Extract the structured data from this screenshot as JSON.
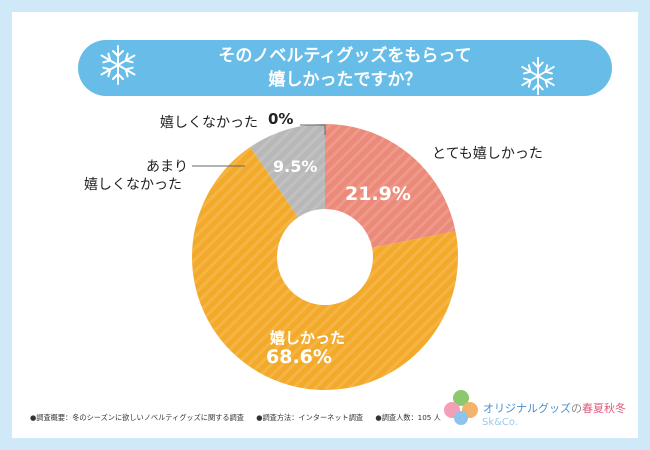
{
  "title": {
    "line1": "そのノベルティグッズをもらって",
    "line2": "嬉しかったですか？"
  },
  "chart_data": {
    "type": "pie",
    "donut": true,
    "slices": [
      {
        "label": "とても嬉しかった",
        "value": 21.9,
        "display": "21.9%",
        "color": "#ec8a7a"
      },
      {
        "label": "嬉しかった",
        "value": 68.6,
        "display": "68.6%",
        "color": "#f3aa2a"
      },
      {
        "label_line1": "あまり",
        "label_line2": "嬉しくなかった",
        "value": 9.5,
        "display": "9.5%",
        "color": "#b8b8b8"
      },
      {
        "label": "嬉しくなかった",
        "value": 0,
        "display": "0%",
        "color": "#b8b8b8"
      }
    ]
  },
  "footer": {
    "item1": "●調査概要：冬のシーズンに欲しいノベルティグッズに関する調査",
    "item2": "●調査方法：インターネット調査",
    "item3": "●調査人数：105 人"
  },
  "brand": {
    "name_prefix": "オリジナルグッズ",
    "name_no": "の",
    "name_seasons": "春夏秋冬",
    "sub": "Sk&Co."
  }
}
